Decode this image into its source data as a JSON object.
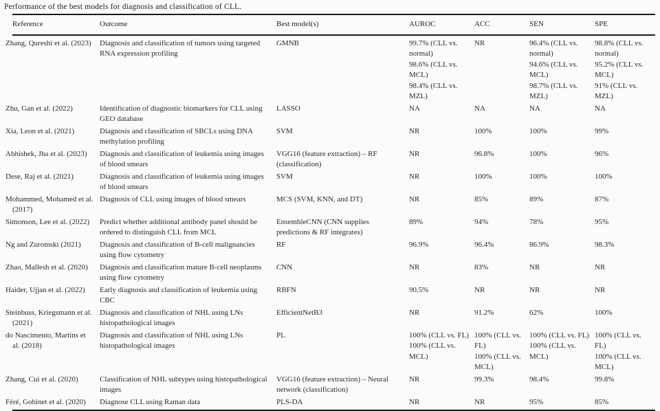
{
  "title": "Performance of the best models for diagnosis and classification of CLL.",
  "table": {
    "columns": [
      "Reference",
      "Outcome",
      "Best model(s)",
      "AUROC",
      "ACC",
      "SEN",
      "SPE"
    ],
    "rows": [
      {
        "reference": "Zhang, Qureshi et al. (2023)",
        "outcome": "Diagnosis and classification of tumors using targeted RNA expression profiling",
        "model": "GMNB",
        "auroc": [
          "99.7% (CLL vs. normal)",
          "98.6% (CLL vs. MCL)",
          "98.4% (CLL vs. MZL)"
        ],
        "acc": "NR",
        "sen": [
          "96.4% (CLL vs. normal)",
          "94.6% (CLL vs. MCL)",
          "98.7% (CLL vs. MZL)"
        ],
        "spe": [
          "98.8% (CLL vs. normal)",
          "95.2% (CLL vs. MCL)",
          "91% (CLL vs. MZL)"
        ]
      },
      {
        "reference": "Zhu, Gan et al. (2022)",
        "outcome": "Identification of diagnostic biomarkers for CLL using GEO database",
        "model": "LASSO",
        "auroc": "NA",
        "acc": "NA",
        "sen": "NA",
        "spe": "NA"
      },
      {
        "reference": "Xia, Leon et al. (2021)",
        "outcome": "Diagnosis and classification of SBCLs using DNA methylation profiling",
        "model": "SVM",
        "auroc": "NR",
        "acc": "100%",
        "sen": "100%",
        "spe": "99%"
      },
      {
        "reference": "Abhishek, Jha et al. (2023)",
        "outcome": "Diagnosis and classification of leukemia using images of blood smears",
        "model": "VGG16 (feature extraction) – RF (classification)",
        "auroc": "NR",
        "acc": "96.8%",
        "sen": "100%",
        "spe": "96%"
      },
      {
        "reference": "Dese, Raj et al. (2021)",
        "outcome": "Diagnosis and classification of leukemia using images of blood smears",
        "model": "SVM",
        "auroc": "NR",
        "acc": "100%",
        "sen": "100%",
        "spe": "100%"
      },
      {
        "reference": "Mohammed, Mohamed et al. (2017)",
        "outcome": "Diagnosis of CLL using images of blood smears",
        "model": "MCS (SVM, KNN, and DT)",
        "auroc": "NR",
        "acc": "85%",
        "sen": "89%",
        "spe": "87%"
      },
      {
        "reference": "Simonson, Lee et al. (2022)",
        "outcome": "Predict whether additional antibody panel should be ordered to distinguish CLL from MCL",
        "model": "EnsembleCNN (CNN supplies predictions & RF integrates)",
        "auroc": "89%",
        "acc": "94%",
        "sen": "78%",
        "spe": "95%"
      },
      {
        "reference": "Ng and Zuromski (2021)",
        "outcome": "Diagnosis and classification of B-cell malignancies using flow cytometry",
        "model": "RF",
        "auroc": "96.9%",
        "acc": "96.4%",
        "sen": "86.9%",
        "spe": "98.3%"
      },
      {
        "reference": "Zhao, Mallesh et al. (2020)",
        "outcome": "Diagnosis and classification mature B-cell neoplasms using flow cytometry",
        "model": "CNN",
        "auroc": "NR",
        "acc": "83%",
        "sen": "NR",
        "spe": "NR"
      },
      {
        "reference": "Haider, Ujjan et al. (2022)",
        "outcome": "Early diagnosis and classification of leukemia using CBC",
        "model": "RBFN",
        "auroc": "90.5%",
        "acc": "NR",
        "sen": "NR",
        "spe": "NR"
      },
      {
        "reference": "Steinbuss, Kriegsmann et al. (2021)",
        "outcome": "Diagnosis and classification of NHL using LNs histopathological images",
        "model": "EfficientNetB3",
        "auroc": "NR",
        "acc": "91.2%",
        "sen": "62%",
        "spe": "100%"
      },
      {
        "reference": "do Nascimento, Martins et al. (2018)",
        "outcome": "Diagnosis and classification of NHL using LNs histopathological images",
        "model": "PL",
        "auroc": [
          "100% (CLL vs. FL)",
          "100% (CLL vs. MCL)"
        ],
        "acc": [
          "100% (CLL vs. FL)",
          "100% (CLL vs. MCL)"
        ],
        "sen": [
          "100% (CLL vs. FL)",
          "100% (CLL vs. MCL)"
        ],
        "spe": [
          "100% (CLL vs. FL)",
          "100% (CLL vs. MCL)"
        ]
      },
      {
        "reference": "Zhang, Cui et al. (2020)",
        "outcome": "Classification of NHL subtypes using histopathological images",
        "model": "VGG16 (feature extraction) – Neural network (classification)",
        "auroc": "NR",
        "acc": "99.3%",
        "sen": "98.4%",
        "spe": "99.8%"
      },
      {
        "reference": "Féré, Gobinet et al. (2020)",
        "outcome": "Diagnose CLL using Raman data",
        "model": "PLS-DA",
        "auroc": "NR",
        "acc": "NR",
        "sen": "95%",
        "spe": "85%"
      }
    ]
  }
}
